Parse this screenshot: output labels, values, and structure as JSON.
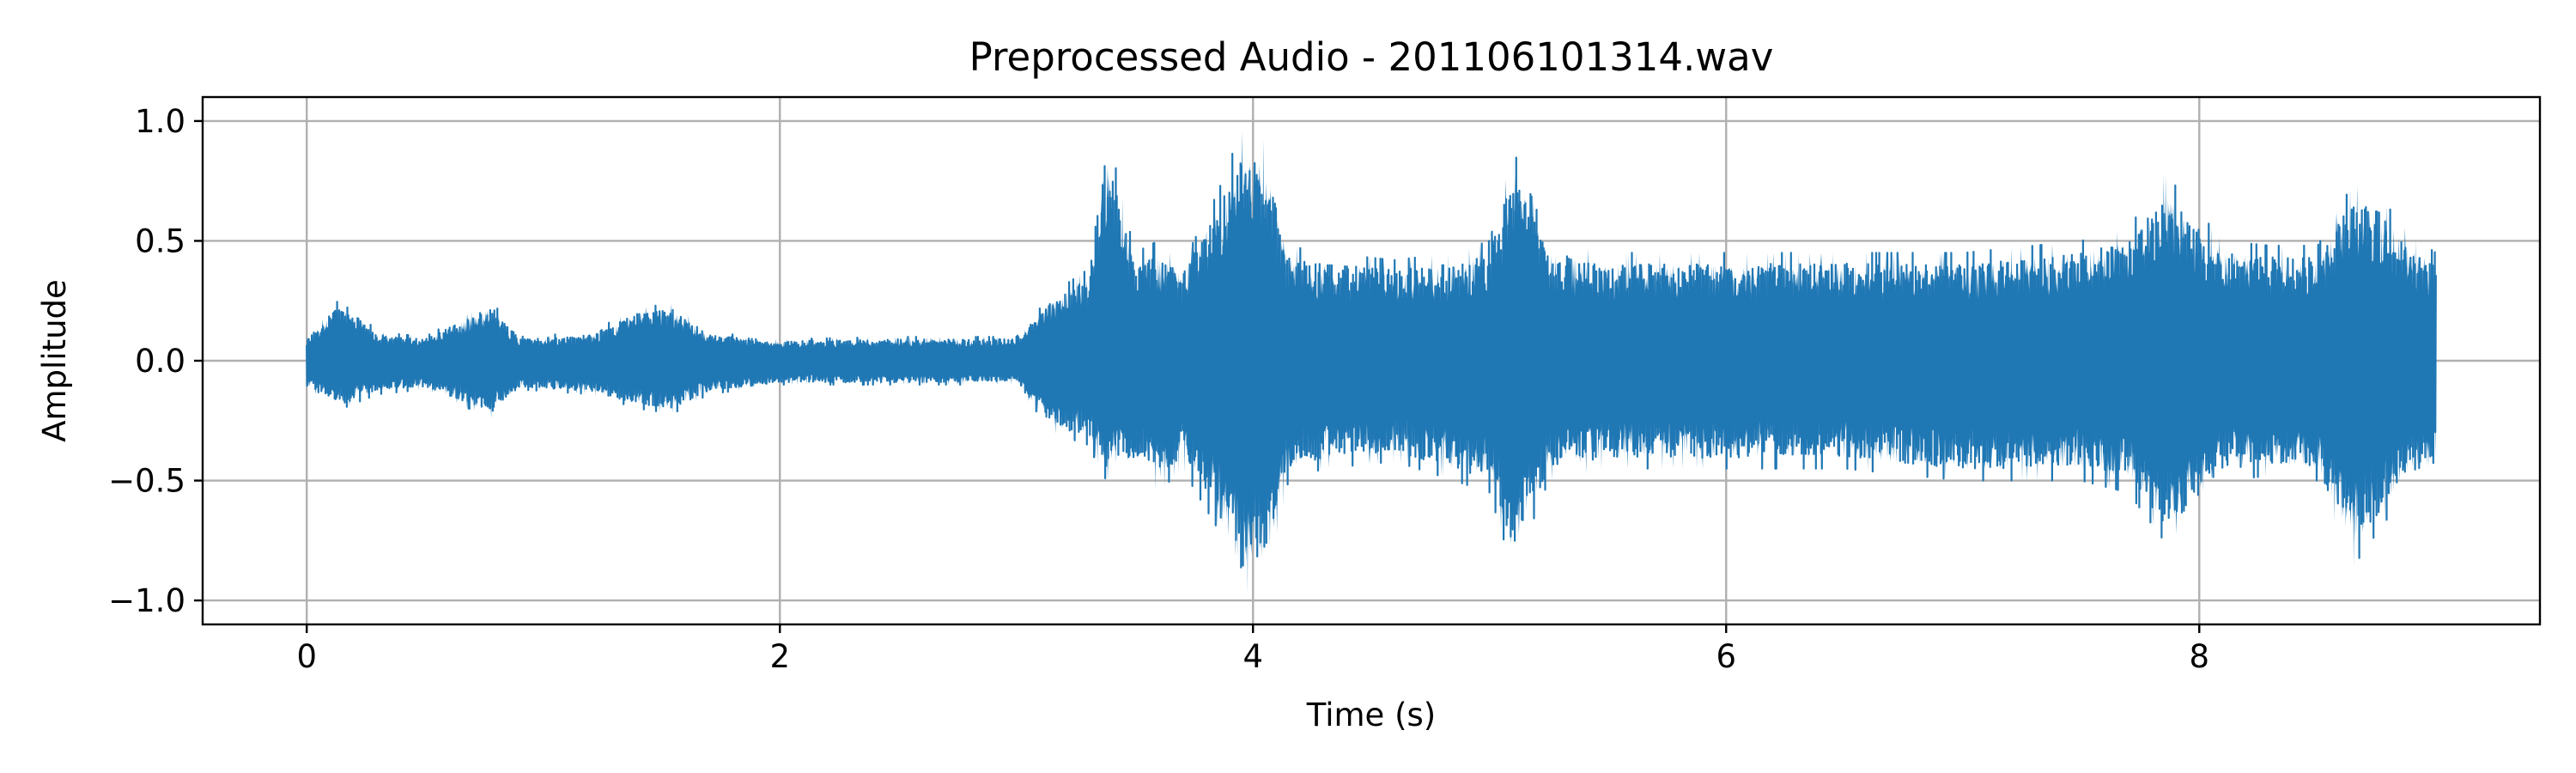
{
  "chart_data": {
    "type": "line",
    "title": "Preprocessed Audio - 201106101314.wav",
    "xlabel": "Time (s)",
    "ylabel": "Amplitude",
    "xlim": [
      -0.44,
      9.44
    ],
    "ylim": [
      -1.1,
      1.1
    ],
    "xticks": [
      0,
      2,
      4,
      6,
      8
    ],
    "xtick_labels": [
      "0",
      "2",
      "4",
      "6",
      "8"
    ],
    "yticks": [
      1.0,
      0.5,
      0.0,
      -0.5,
      -1.0
    ],
    "ytick_labels": [
      "1.0",
      "0.5",
      "0.0",
      "−0.5",
      "−1.0"
    ],
    "grid": true,
    "duration_s": 9.0,
    "series": [
      {
        "color": "#1f77b4",
        "envelope_time_s": [
          0.0,
          0.15,
          0.3,
          0.5,
          0.78,
          0.9,
          1.2,
          1.4,
          1.55,
          1.7,
          2.0,
          2.5,
          3.0,
          3.15,
          3.3,
          3.38,
          3.5,
          3.6,
          3.7,
          3.85,
          3.95,
          4.05,
          4.15,
          4.3,
          4.6,
          4.85,
          5.0,
          5.1,
          5.25,
          5.5,
          6.0,
          6.5,
          7.0,
          7.5,
          7.7,
          7.85,
          7.95,
          8.1,
          8.3,
          8.5,
          8.65,
          8.75,
          8.9,
          9.0
        ],
        "envelope_pos": [
          0.1,
          0.27,
          0.12,
          0.1,
          0.25,
          0.1,
          0.12,
          0.22,
          0.24,
          0.12,
          0.09,
          0.1,
          0.1,
          0.28,
          0.38,
          0.98,
          0.45,
          0.5,
          0.4,
          0.7,
          0.96,
          0.92,
          0.48,
          0.45,
          0.42,
          0.45,
          0.5,
          0.88,
          0.5,
          0.45,
          0.45,
          0.45,
          0.45,
          0.5,
          0.55,
          0.78,
          0.68,
          0.5,
          0.48,
          0.48,
          0.74,
          0.7,
          0.52,
          0.45
        ],
        "envelope_neg": [
          -0.12,
          -0.2,
          -0.14,
          -0.12,
          -0.24,
          -0.12,
          -0.14,
          -0.2,
          -0.22,
          -0.14,
          -0.1,
          -0.1,
          -0.1,
          -0.3,
          -0.35,
          -0.5,
          -0.45,
          -0.55,
          -0.45,
          -0.7,
          -0.98,
          -0.95,
          -0.5,
          -0.45,
          -0.42,
          -0.5,
          -0.55,
          -0.88,
          -0.5,
          -0.45,
          -0.45,
          -0.45,
          -0.5,
          -0.5,
          -0.55,
          -0.75,
          -0.7,
          -0.5,
          -0.48,
          -0.5,
          -0.86,
          -0.72,
          -0.52,
          -0.48
        ]
      }
    ]
  }
}
